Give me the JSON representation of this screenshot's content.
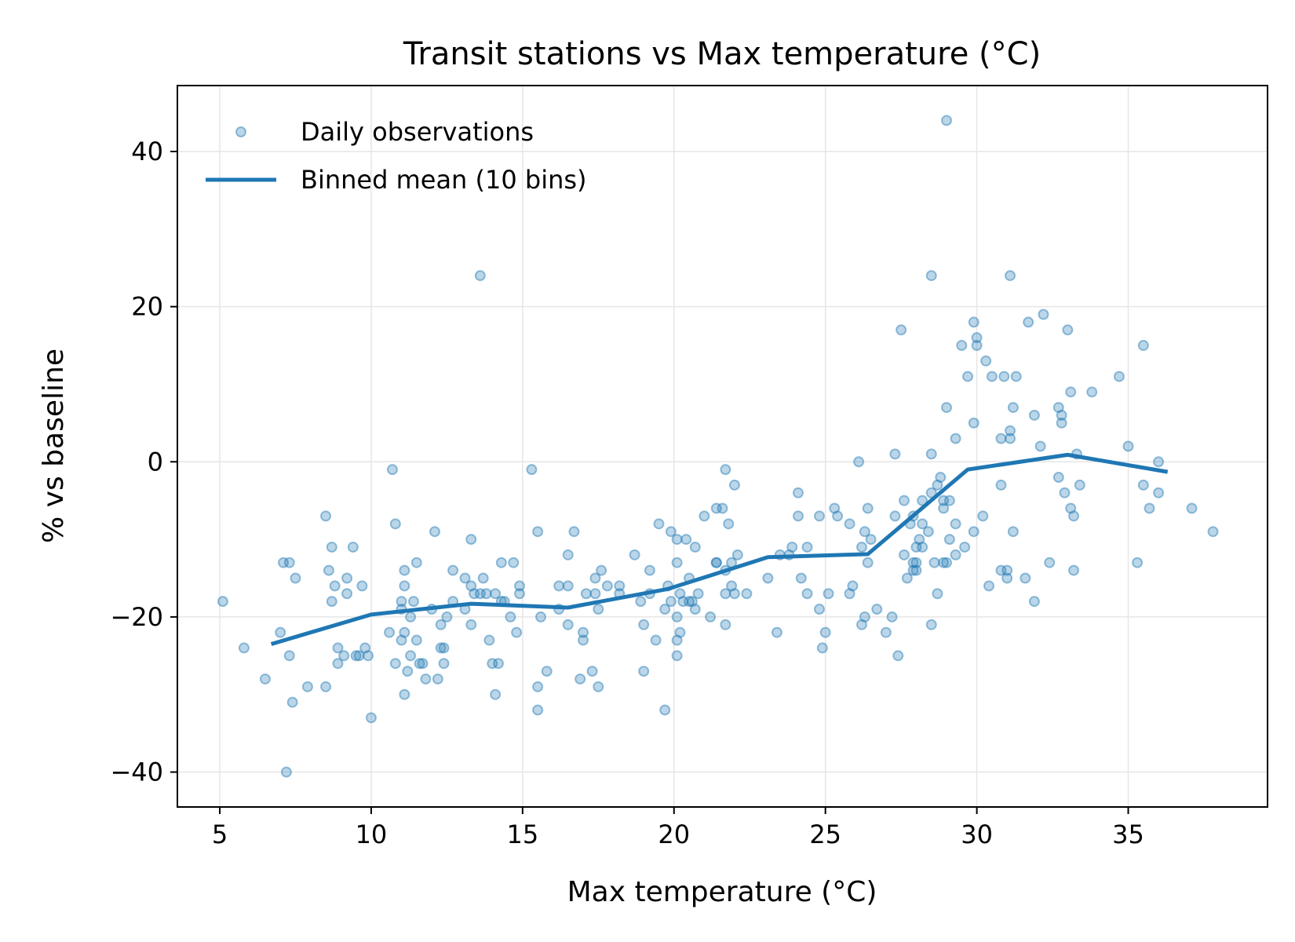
{
  "chart_data": {
    "type": "scatter",
    "title": "Transit stations vs Max temperature (°C)",
    "xlabel": "Max temperature (°C)",
    "ylabel": "% vs baseline",
    "xlim": [
      3.6,
      39.6
    ],
    "ylim": [
      -44.5,
      48.5
    ],
    "xticks": [
      5,
      10,
      15,
      20,
      25,
      30,
      35
    ],
    "yticks": [
      -40,
      -20,
      0,
      20,
      40
    ],
    "grid": true,
    "legend_position": "top-left",
    "colors": {
      "series": "#1f77b4"
    },
    "series": [
      {
        "name": "Daily observations",
        "kind": "scatter",
        "points": [
          [
            5.1,
            -18
          ],
          [
            5.8,
            -24
          ],
          [
            6.5,
            -28
          ],
          [
            7.0,
            -22
          ],
          [
            7.1,
            -13
          ],
          [
            7.2,
            -40
          ],
          [
            7.3,
            -13
          ],
          [
            7.3,
            -25
          ],
          [
            7.4,
            -31
          ],
          [
            7.5,
            -15
          ],
          [
            7.9,
            -29
          ],
          [
            8.5,
            -7
          ],
          [
            8.5,
            -29
          ],
          [
            8.6,
            -14
          ],
          [
            8.7,
            -11
          ],
          [
            8.7,
            -18
          ],
          [
            8.8,
            -16
          ],
          [
            8.9,
            -24
          ],
          [
            8.9,
            -26
          ],
          [
            9.1,
            -25
          ],
          [
            9.2,
            -15
          ],
          [
            9.2,
            -17
          ],
          [
            9.4,
            -11
          ],
          [
            9.5,
            -25
          ],
          [
            9.6,
            -25
          ],
          [
            9.7,
            -16
          ],
          [
            9.8,
            -24
          ],
          [
            9.9,
            -25
          ],
          [
            10.0,
            -33
          ],
          [
            10.6,
            -22
          ],
          [
            10.7,
            -1
          ],
          [
            10.8,
            -8
          ],
          [
            10.8,
            -26
          ],
          [
            11.0,
            -18
          ],
          [
            11.0,
            -19
          ],
          [
            11.0,
            -23
          ],
          [
            11.1,
            -14
          ],
          [
            11.1,
            -16
          ],
          [
            11.1,
            -22
          ],
          [
            11.1,
            -30
          ],
          [
            11.2,
            -27
          ],
          [
            11.3,
            -25
          ],
          [
            11.3,
            -20
          ],
          [
            11.4,
            -18
          ],
          [
            11.5,
            -13
          ],
          [
            11.5,
            -23
          ],
          [
            11.6,
            -26
          ],
          [
            11.7,
            -26
          ],
          [
            11.8,
            -28
          ],
          [
            12.0,
            -19
          ],
          [
            12.1,
            -9
          ],
          [
            12.2,
            -28
          ],
          [
            12.3,
            -21
          ],
          [
            12.3,
            -24
          ],
          [
            12.4,
            -24
          ],
          [
            12.4,
            -26
          ],
          [
            12.5,
            -20
          ],
          [
            12.7,
            -14
          ],
          [
            12.7,
            -18
          ],
          [
            13.1,
            -15
          ],
          [
            13.1,
            -19
          ],
          [
            13.3,
            -10
          ],
          [
            13.3,
            -16
          ],
          [
            13.3,
            -21
          ],
          [
            13.4,
            -17
          ],
          [
            13.6,
            -17
          ],
          [
            13.6,
            24
          ],
          [
            13.7,
            -15
          ],
          [
            13.8,
            -17
          ],
          [
            13.9,
            -23
          ],
          [
            14.0,
            -26
          ],
          [
            14.1,
            -17
          ],
          [
            14.1,
            -30
          ],
          [
            14.2,
            -26
          ],
          [
            14.3,
            -18
          ],
          [
            14.3,
            -13
          ],
          [
            14.4,
            -18
          ],
          [
            14.6,
            -20
          ],
          [
            14.7,
            -13
          ],
          [
            14.8,
            -22
          ],
          [
            14.9,
            -17
          ],
          [
            14.9,
            -16
          ],
          [
            15.3,
            -1
          ],
          [
            15.5,
            -9
          ],
          [
            15.5,
            -29
          ],
          [
            15.5,
            -32
          ],
          [
            15.6,
            -20
          ],
          [
            15.8,
            -27
          ],
          [
            16.2,
            -16
          ],
          [
            16.2,
            -19
          ],
          [
            16.5,
            -12
          ],
          [
            16.5,
            -16
          ],
          [
            16.5,
            -21
          ],
          [
            16.7,
            -9
          ],
          [
            16.9,
            -28
          ],
          [
            17.0,
            -22
          ],
          [
            17.0,
            -23
          ],
          [
            17.1,
            -17
          ],
          [
            17.3,
            -27
          ],
          [
            17.4,
            -17
          ],
          [
            17.4,
            -15
          ],
          [
            17.5,
            -19
          ],
          [
            17.5,
            -29
          ],
          [
            17.6,
            -14
          ],
          [
            17.8,
            -16
          ],
          [
            18.2,
            -16
          ],
          [
            18.2,
            -17
          ],
          [
            18.7,
            -12
          ],
          [
            18.9,
            -18
          ],
          [
            19.0,
            -21
          ],
          [
            19.0,
            -27
          ],
          [
            19.2,
            -14
          ],
          [
            19.2,
            -17
          ],
          [
            19.4,
            -23
          ],
          [
            19.5,
            -8
          ],
          [
            19.7,
            -19
          ],
          [
            19.7,
            -32
          ],
          [
            19.8,
            -16
          ],
          [
            19.9,
            -9
          ],
          [
            19.9,
            -18
          ],
          [
            20.1,
            -10
          ],
          [
            20.1,
            -13
          ],
          [
            20.1,
            -20
          ],
          [
            20.1,
            -23
          ],
          [
            20.1,
            -25
          ],
          [
            20.2,
            -17
          ],
          [
            20.2,
            -22
          ],
          [
            20.3,
            -18
          ],
          [
            20.4,
            -10
          ],
          [
            20.5,
            -15
          ],
          [
            20.5,
            -18
          ],
          [
            20.6,
            -18
          ],
          [
            20.7,
            -11
          ],
          [
            20.7,
            -19
          ],
          [
            20.8,
            -17
          ],
          [
            21.0,
            -7
          ],
          [
            21.2,
            -20
          ],
          [
            21.4,
            -13
          ],
          [
            21.4,
            -6
          ],
          [
            21.4,
            -13
          ],
          [
            21.6,
            -6
          ],
          [
            21.7,
            -1
          ],
          [
            21.7,
            -14
          ],
          [
            21.7,
            -17
          ],
          [
            21.7,
            -21
          ],
          [
            21.8,
            -8
          ],
          [
            21.9,
            -13
          ],
          [
            21.9,
            -16
          ],
          [
            22.0,
            -17
          ],
          [
            22.0,
            -3
          ],
          [
            22.1,
            -12
          ],
          [
            22.4,
            -17
          ],
          [
            23.1,
            -15
          ],
          [
            23.4,
            -22
          ],
          [
            23.5,
            -12
          ],
          [
            23.8,
            -12
          ],
          [
            23.9,
            -11
          ],
          [
            24.1,
            -4
          ],
          [
            24.1,
            -7
          ],
          [
            24.2,
            -15
          ],
          [
            24.4,
            -17
          ],
          [
            24.4,
            -11
          ],
          [
            24.8,
            -19
          ],
          [
            24.8,
            -7
          ],
          [
            24.9,
            -24
          ],
          [
            25.0,
            -22
          ],
          [
            25.1,
            -17
          ],
          [
            25.3,
            -6
          ],
          [
            25.4,
            -7
          ],
          [
            25.8,
            -8
          ],
          [
            25.8,
            -17
          ],
          [
            25.9,
            -16
          ],
          [
            26.1,
            0
          ],
          [
            26.2,
            -11
          ],
          [
            26.2,
            -21
          ],
          [
            26.3,
            -20
          ],
          [
            26.3,
            -9
          ],
          [
            26.4,
            -13
          ],
          [
            26.4,
            -6
          ],
          [
            26.5,
            -10
          ],
          [
            26.7,
            -19
          ],
          [
            27.0,
            -22
          ],
          [
            27.2,
            -20
          ],
          [
            27.3,
            1
          ],
          [
            27.3,
            -7
          ],
          [
            27.4,
            -25
          ],
          [
            27.5,
            17
          ],
          [
            27.6,
            -5
          ],
          [
            27.6,
            -12
          ],
          [
            27.7,
            -15
          ],
          [
            27.8,
            -8
          ],
          [
            27.9,
            -13
          ],
          [
            27.9,
            -14
          ],
          [
            27.9,
            -7
          ],
          [
            28.0,
            -11
          ],
          [
            28.0,
            -13
          ],
          [
            28.0,
            -14
          ],
          [
            28.1,
            -10
          ],
          [
            28.2,
            -8
          ],
          [
            28.2,
            -5
          ],
          [
            28.2,
            -11
          ],
          [
            28.4,
            -9
          ],
          [
            28.5,
            24
          ],
          [
            28.5,
            -4
          ],
          [
            28.5,
            -21
          ],
          [
            28.5,
            1
          ],
          [
            28.6,
            -13
          ],
          [
            28.7,
            -17
          ],
          [
            28.7,
            -3
          ],
          [
            28.8,
            -2
          ],
          [
            28.9,
            -6
          ],
          [
            28.9,
            -13
          ],
          [
            28.9,
            -5
          ],
          [
            29.0,
            44
          ],
          [
            29.0,
            7
          ],
          [
            29.0,
            -13
          ],
          [
            29.1,
            -5
          ],
          [
            29.1,
            -10
          ],
          [
            29.3,
            -12
          ],
          [
            29.3,
            3
          ],
          [
            29.3,
            -8
          ],
          [
            29.5,
            15
          ],
          [
            29.6,
            -11
          ],
          [
            29.7,
            11
          ],
          [
            29.9,
            5
          ],
          [
            29.9,
            18
          ],
          [
            29.9,
            -9
          ],
          [
            30.0,
            15
          ],
          [
            30.0,
            16
          ],
          [
            30.2,
            -7
          ],
          [
            30.3,
            13
          ],
          [
            30.4,
            -16
          ],
          [
            30.5,
            11
          ],
          [
            30.8,
            -3
          ],
          [
            30.8,
            3
          ],
          [
            30.8,
            -14
          ],
          [
            30.9,
            11
          ],
          [
            31.0,
            -14
          ],
          [
            31.0,
            -15
          ],
          [
            31.1,
            24
          ],
          [
            31.1,
            3
          ],
          [
            31.1,
            4
          ],
          [
            31.2,
            7
          ],
          [
            31.2,
            -9
          ],
          [
            31.3,
            11
          ],
          [
            31.6,
            -15
          ],
          [
            31.7,
            18
          ],
          [
            31.9,
            -18
          ],
          [
            31.9,
            6
          ],
          [
            32.1,
            2
          ],
          [
            32.2,
            19
          ],
          [
            32.4,
            -13
          ],
          [
            32.7,
            7
          ],
          [
            32.7,
            -2
          ],
          [
            32.8,
            5
          ],
          [
            32.8,
            6
          ],
          [
            32.9,
            -4
          ],
          [
            33.0,
            17
          ],
          [
            33.1,
            -6
          ],
          [
            33.1,
            9
          ],
          [
            33.2,
            -14
          ],
          [
            33.2,
            -7
          ],
          [
            33.3,
            1
          ],
          [
            33.4,
            -3
          ],
          [
            33.8,
            9
          ],
          [
            34.7,
            11
          ],
          [
            35.0,
            2
          ],
          [
            35.3,
            -13
          ],
          [
            35.5,
            15
          ],
          [
            35.5,
            -3
          ],
          [
            35.7,
            -6
          ],
          [
            36.0,
            0
          ],
          [
            36.0,
            -4
          ],
          [
            37.1,
            -6
          ],
          [
            37.8,
            -9
          ]
        ]
      },
      {
        "name": "Binned mean (10 bins)",
        "kind": "line",
        "points": [
          [
            6.7,
            -23.5
          ],
          [
            10.0,
            -19.7
          ],
          [
            13.3,
            -18.3
          ],
          [
            16.5,
            -18.8
          ],
          [
            19.8,
            -16.4
          ],
          [
            23.1,
            -12.3
          ],
          [
            26.4,
            -11.9
          ],
          [
            29.7,
            -1.0
          ],
          [
            33.0,
            0.9
          ],
          [
            36.3,
            -1.3
          ]
        ]
      }
    ]
  }
}
